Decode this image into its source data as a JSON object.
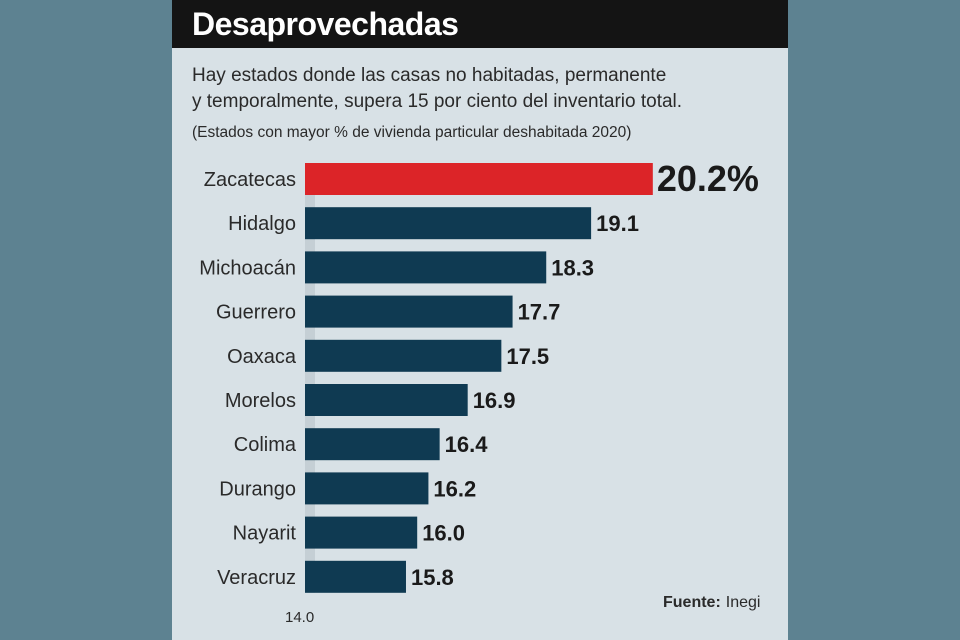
{
  "title": "Desaprovechadas",
  "subtitle_line1": "Hay estados donde las casas no habitadas, permanente",
  "subtitle_line2": "y temporalmente, supera 15 por ciento del inventario total.",
  "note": "(Estados con mayor % de vivienda particular deshabitada 2020)",
  "source_label": "Fuente:",
  "source_value": "Inegi",
  "colors": {
    "highlight": "#dc2428",
    "bar": "#0f3a52",
    "panel": "#d8e1e6",
    "page": "#5d8291"
  },
  "chart_data": {
    "type": "bar",
    "orientation": "horizontal",
    "categories": [
      "Zacatecas",
      "Hidalgo",
      "Michoacán",
      "Guerrero",
      "Oaxaca",
      "Morelos",
      "Colima",
      "Durango",
      "Nayarit",
      "Veracruz"
    ],
    "values": [
      20.2,
      19.1,
      18.3,
      17.7,
      17.5,
      16.9,
      16.4,
      16.2,
      16.0,
      15.8
    ],
    "value_labels": [
      "20.2%",
      "19.1",
      "18.3",
      "17.7",
      "17.5",
      "16.9",
      "16.4",
      "16.2",
      "16.0",
      "15.8"
    ],
    "highlight_index": 0,
    "axis_min_label": "14.0",
    "xlim": [
      14.0,
      20.2
    ],
    "grid": false,
    "legend": "none"
  }
}
